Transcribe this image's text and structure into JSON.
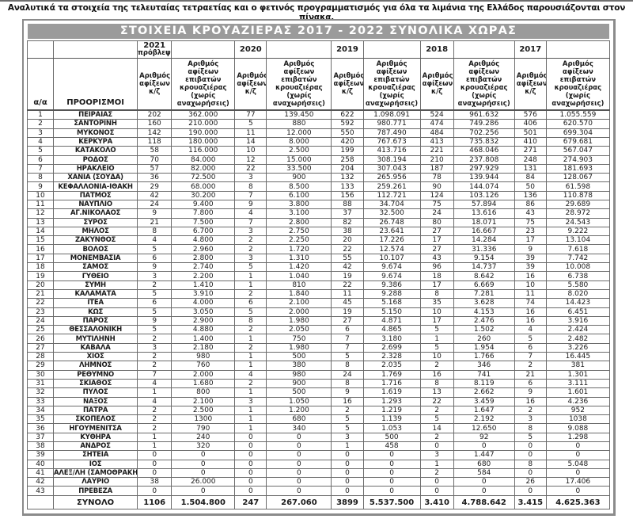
{
  "intro": "Αναλυτικά τα στοιχεία της τελευταίας τετραετίας και ο φετινός προγραμματισμός για όλα τα λιμάνια της Ελλάδος παρουσιάζονται στον πίνακα.",
  "table": {
    "title": "ΣΤΟΙΧΕΙΑ ΚΡΟΥΑΖΙΕΡΑΣ 2017 - 2022 ΣΥΝΟΛΙΚΑ ΧΩΡΑΣ",
    "col_index": "α/α",
    "col_destination": "ΠΡΟΟΡΙΣΜΟΙ",
    "sub_arrivals": "Αριθμός αφίξεων κ/ζ",
    "sub_passengers": "Αριθμός αφίξεων επιβατών κρουαζιέρας (χωρίς αναχωρήσεις)",
    "years": [
      {
        "year": "2021",
        "note": "πρόβλεψη"
      },
      {
        "year": "2020",
        "note": ""
      },
      {
        "year": "2019",
        "note": ""
      },
      {
        "year": "2018",
        "note": ""
      },
      {
        "year": "2017",
        "note": ""
      }
    ],
    "title_bg_color": "#9b9b9b",
    "rows": [
      {
        "index": "1",
        "destination": "ΠΕΙΡΑΙΑΣ",
        "values": [
          "202",
          "362.000",
          "77",
          "139.450",
          "622",
          "1.098.091",
          "524",
          "961.632",
          "576",
          "1.055.559"
        ]
      },
      {
        "index": "2",
        "destination": "ΣΑΝΤΟΡΙΝΗ",
        "values": [
          "160",
          "210.000",
          "5",
          "880",
          "592",
          "980.771",
          "474",
          "749.286",
          "406",
          "620.570"
        ]
      },
      {
        "index": "3",
        "destination": "ΜΥΚΟΝΟΣ",
        "values": [
          "142",
          "190.000",
          "11",
          "12.000",
          "550",
          "787.490",
          "484",
          "702.256",
          "501",
          "699.304"
        ]
      },
      {
        "index": "4",
        "destination": "ΚΕΡΚΥΡΑ",
        "values": [
          "118",
          "180.000",
          "14",
          "8.000",
          "420",
          "767.673",
          "413",
          "735.832",
          "410",
          "679.681"
        ]
      },
      {
        "index": "5",
        "destination": "ΚΑΤΑΚΟΛΟ",
        "values": [
          "58",
          "116.000",
          "10",
          "2.500",
          "199",
          "413.716",
          "221",
          "468.046",
          "271",
          "567.047"
        ]
      },
      {
        "index": "6",
        "destination": "ΡΟΔΟΣ",
        "values": [
          "70",
          "84.000",
          "12",
          "15.000",
          "258",
          "308.194",
          "210",
          "237.808",
          "248",
          "274.903"
        ]
      },
      {
        "index": "7",
        "destination": "ΗΡΑΚΛΕΙΟ",
        "values": [
          "57",
          "82.000",
          "22",
          "33.500",
          "204",
          "307.043",
          "187",
          "297.929",
          "131",
          "181.693"
        ]
      },
      {
        "index": "8",
        "destination": "ΧΑΝΙΑ (ΣΟΥΔΑ)",
        "values": [
          "36",
          "72.500",
          "3",
          "900",
          "132",
          "265.956",
          "78",
          "139.944",
          "84",
          "128.067"
        ]
      },
      {
        "index": "9",
        "destination": "ΚΕΦΑΛΛΟΝΙΑ-ΙΘΑΚΗ",
        "values": [
          "29",
          "68.000",
          "8",
          "8.500",
          "133",
          "259.261",
          "90",
          "144.074",
          "50",
          "61.598"
        ]
      },
      {
        "index": "10",
        "destination": "ΠΑΤΜΟΣ",
        "values": [
          "42",
          "30.200",
          "7",
          "6.100",
          "156",
          "112.721",
          "124",
          "103.126",
          "136",
          "110.878"
        ]
      },
      {
        "index": "11",
        "destination": "ΝΑΥΠΛΙΟ",
        "values": [
          "24",
          "9.400",
          "9",
          "3.800",
          "88",
          "34.704",
          "75",
          "57.894",
          "86",
          "29.689"
        ]
      },
      {
        "index": "12",
        "destination": "ΑΓ.ΝΙΚΟΛΑΟΣ",
        "values": [
          "9",
          "7.800",
          "4",
          "3.100",
          "37",
          "32.500",
          "24",
          "13.616",
          "43",
          "28.972"
        ]
      },
      {
        "index": "13",
        "destination": "ΣΥΡΟΣ",
        "values": [
          "21",
          "7.500",
          "7",
          "2.800",
          "82",
          "26.748",
          "80",
          "18.071",
          "75",
          "24.543"
        ]
      },
      {
        "index": "14",
        "destination": "ΜΗΛΟΣ",
        "values": [
          "8",
          "6.700",
          "3",
          "2.750",
          "38",
          "23.641",
          "27",
          "16.667",
          "23",
          "9.222"
        ]
      },
      {
        "index": "15",
        "destination": "ΖΑΚΥΝΘΟΣ",
        "values": [
          "4",
          "4.800",
          "2",
          "2.250",
          "20",
          "17.226",
          "17",
          "14.284",
          "17",
          "13.104"
        ]
      },
      {
        "index": "16",
        "destination": "ΒΟΛΟΣ",
        "values": [
          "5",
          "2.960",
          "2",
          "1.720",
          "22",
          "12.574",
          "27",
          "31.336",
          "9",
          "7.618"
        ]
      },
      {
        "index": "17",
        "destination": "ΜΟΝΕΜΒΑΣΙΑ",
        "values": [
          "6",
          "2.800",
          "3",
          "1.310",
          "55",
          "10.107",
          "43",
          "9.154",
          "39",
          "7.742"
        ]
      },
      {
        "index": "18",
        "destination": "ΣΑΜΟΣ",
        "values": [
          "9",
          "2.740",
          "5",
          "1.420",
          "42",
          "9.674",
          "96",
          "14.737",
          "39",
          "10.008"
        ]
      },
      {
        "index": "19",
        "destination": "ΓΥΘΕΙΟ",
        "values": [
          "3",
          "2.200",
          "1",
          "1.040",
          "19",
          "9.674",
          "18",
          "8.642",
          "16",
          "6.738"
        ]
      },
      {
        "index": "20",
        "destination": "ΣΥΜΗ",
        "values": [
          "2",
          "1.410",
          "1",
          "810",
          "22",
          "9.386",
          "17",
          "6.669",
          "10",
          "5.580"
        ]
      },
      {
        "index": "21",
        "destination": "ΚΑΛΑΜΑΤΑ",
        "values": [
          "5",
          "3.910",
          "2",
          "1.840",
          "11",
          "9.288",
          "8",
          "7.281",
          "11",
          "8.020"
        ]
      },
      {
        "index": "22",
        "destination": "ΙΤΕΑ",
        "values": [
          "6",
          "4.000",
          "6",
          "2.100",
          "45",
          "5.168",
          "35",
          "3.628",
          "74",
          "14.423"
        ]
      },
      {
        "index": "23",
        "destination": "ΚΩΣ",
        "values": [
          "5",
          "3.050",
          "5",
          "2.000",
          "19",
          "5.150",
          "10",
          "4.153",
          "16",
          "6.451"
        ]
      },
      {
        "index": "24",
        "destination": "ΠΑΡΟΣ",
        "values": [
          "9",
          "2.900",
          "8",
          "1.980",
          "27",
          "4.871",
          "17",
          "2.476",
          "16",
          "3.916"
        ]
      },
      {
        "index": "25",
        "destination": "ΘΕΣΣΑΛΟΝΙΚΗ",
        "values": [
          "5",
          "4.880",
          "2",
          "2.050",
          "6",
          "4.865",
          "5",
          "1.502",
          "4",
          "2.424"
        ]
      },
      {
        "index": "26",
        "destination": "ΜΥΤΙΛΗΝΗ",
        "values": [
          "2",
          "1.400",
          "1",
          "750",
          "7",
          "3.180",
          "1",
          "260",
          "5",
          "2.482"
        ]
      },
      {
        "index": "27",
        "destination": "ΚΑΒΑΛΑ",
        "values": [
          "3",
          "2.180",
          "2",
          "1.980",
          "7",
          "2.699",
          "5",
          "1.954",
          "6",
          "3.226"
        ]
      },
      {
        "index": "28",
        "destination": "ΧΙΟΣ",
        "values": [
          "2",
          "980",
          "1",
          "500",
          "5",
          "2.328",
          "10",
          "1.766",
          "7",
          "16.445"
        ]
      },
      {
        "index": "29",
        "destination": "ΛΗΜΝΟΣ",
        "values": [
          "2",
          "760",
          "1",
          "380",
          "8",
          "2.035",
          "2",
          "346",
          "2",
          "381"
        ]
      },
      {
        "index": "30",
        "destination": "ΡΕΘΥΜΝΟ",
        "values": [
          "7",
          "2.000",
          "4",
          "980",
          "24",
          "1.769",
          "16",
          "741",
          "21",
          "1.301"
        ]
      },
      {
        "index": "31",
        "destination": "ΣΚΙΑΘΟΣ",
        "values": [
          "4",
          "1.680",
          "2",
          "900",
          "8",
          "1.716",
          "8",
          "8.119",
          "6",
          "3.111"
        ]
      },
      {
        "index": "32",
        "destination": "ΠΥΛΟΣ",
        "values": [
          "1",
          "800",
          "1",
          "500",
          "9",
          "1.619",
          "13",
          "2.662",
          "9",
          "1.601"
        ]
      },
      {
        "index": "33",
        "destination": "ΝΑΞΟΣ",
        "values": [
          "4",
          "2.100",
          "3",
          "1.050",
          "16",
          "1.293",
          "22",
          "3.459",
          "16",
          "4.236"
        ]
      },
      {
        "index": "34",
        "destination": "ΠΑΤΡΑ",
        "values": [
          "2",
          "2.500",
          "1",
          "1.200",
          "2",
          "1.219",
          "2",
          "1.647",
          "2",
          "952"
        ]
      },
      {
        "index": "35",
        "destination": "ΣΚΟΠΕΛΟΣ",
        "values": [
          "2",
          "1300",
          "1",
          "680",
          "5",
          "1.139",
          "5",
          "2.192",
          "3",
          "1038"
        ]
      },
      {
        "index": "36",
        "destination": "ΗΓΟΥΜΕΝΙΤΣΑ",
        "values": [
          "2",
          "790",
          "1",
          "340",
          "5",
          "1.053",
          "14",
          "12.650",
          "8",
          "9.088"
        ]
      },
      {
        "index": "37",
        "destination": "ΚΥΘΗΡΑ",
        "values": [
          "1",
          "240",
          "0",
          "0",
          "3",
          "500",
          "2",
          "92",
          "5",
          "1.298"
        ]
      },
      {
        "index": "38",
        "destination": "ΑΝΔΡΟΣ",
        "values": [
          "1",
          "320",
          "0",
          "0",
          "1",
          "458",
          "0",
          "0",
          "0",
          "0"
        ]
      },
      {
        "index": "39",
        "destination": "ΣΗΤΕΙΑ",
        "values": [
          "0",
          "0",
          "0",
          "0",
          "0",
          "0",
          "3",
          "1.447",
          "0",
          "0"
        ]
      },
      {
        "index": "40",
        "destination": "ΙΟΣ",
        "values": [
          "0",
          "0",
          "0",
          "0",
          "0",
          "0",
          "1",
          "680",
          "8",
          "5.048"
        ]
      },
      {
        "index": "41",
        "destination": "ΑΛΕΞ/ΛΗ (ΣΑΜΟΘΡΑΚΗ)",
        "values": [
          "0",
          "0",
          "0",
          "0",
          "0",
          "0",
          "2",
          "584",
          "0",
          "0"
        ]
      },
      {
        "index": "42",
        "destination": "ΛΑΥΡΙΟ",
        "values": [
          "38",
          "26.000",
          "0",
          "0",
          "0",
          "0",
          "0",
          "0",
          "26",
          "17.406"
        ]
      },
      {
        "index": "43",
        "destination": "ΠΡΕΒΕΖΑ",
        "values": [
          "0",
          "0",
          "0",
          "0",
          "0",
          "0",
          "0",
          "0",
          "0",
          "0"
        ]
      }
    ],
    "totals": {
      "label": "ΣΥΝΟΛΟ",
      "values": [
        "1106",
        "1.504.800",
        "247",
        "267.060",
        "3899",
        "5.537.500",
        "3.410",
        "4.788.642",
        "3.415",
        "4.625.363"
      ]
    }
  }
}
